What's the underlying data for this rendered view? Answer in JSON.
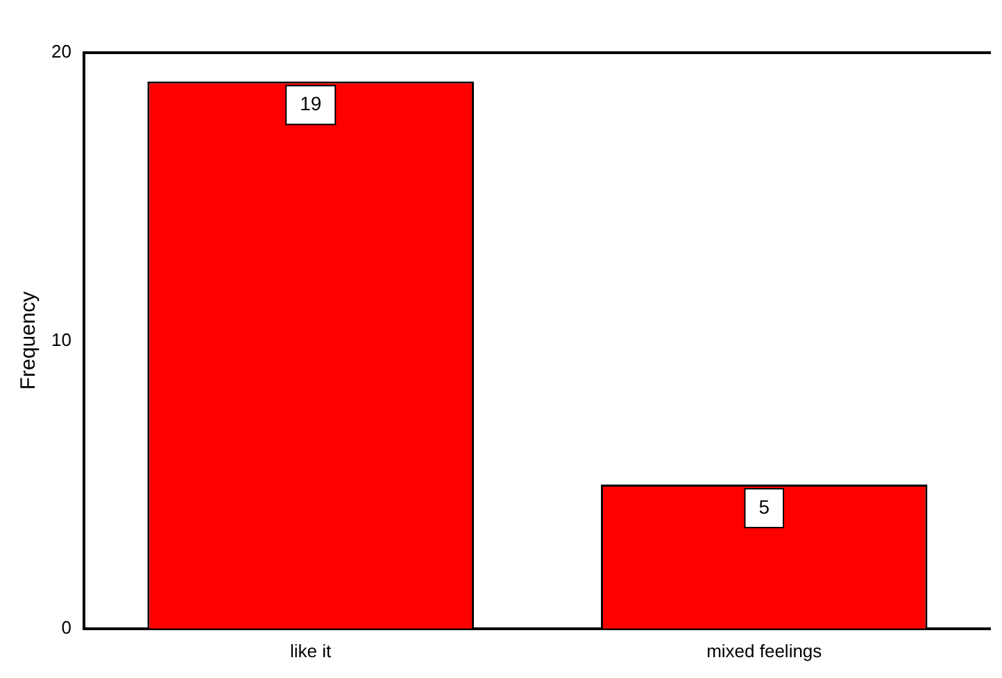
{
  "chart_data": {
    "type": "bar",
    "ylabel": "Frequency",
    "categories": [
      "like it",
      "mixed feelings"
    ],
    "values": [
      19,
      5
    ],
    "color": "#ff0000",
    "ylim": [
      0,
      20
    ],
    "yticks": [
      0,
      10,
      20
    ],
    "grid": false,
    "legend": false,
    "data_labels": true
  }
}
